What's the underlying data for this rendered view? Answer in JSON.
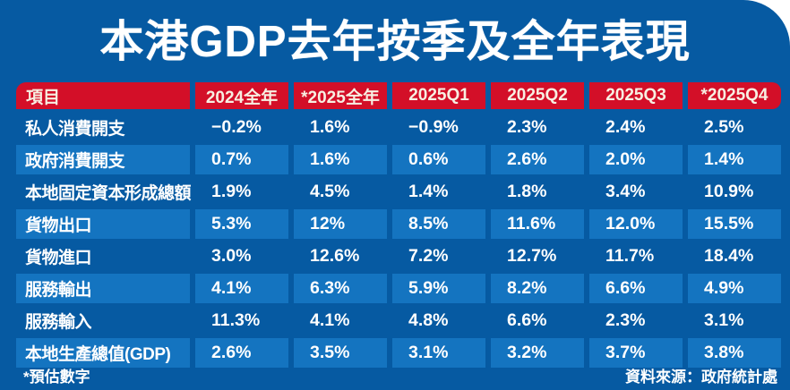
{
  "chart_data": {
    "type": "table",
    "title": "本港GDP去年按季及全年表現",
    "columns": [
      "項目",
      "2024全年",
      "*2025全年",
      "2025Q1",
      "2025Q2",
      "2025Q3",
      "*2025Q4"
    ],
    "rows": [
      {
        "label": "私人消費開支",
        "values": [
          "−0.2%",
          "1.6%",
          "−0.9%",
          "2.3%",
          "2.4%",
          "2.5%"
        ]
      },
      {
        "label": "政府消費開支",
        "values": [
          "0.7%",
          "1.6%",
          "0.6%",
          "2.6%",
          "2.0%",
          "1.4%"
        ]
      },
      {
        "label": "本地固定資本形成總額",
        "values": [
          "1.9%",
          "4.5%",
          "1.4%",
          "1.8%",
          "3.4%",
          "10.9%"
        ]
      },
      {
        "label": "貨物出口",
        "values": [
          "5.3%",
          "12%",
          "8.5%",
          "11.6%",
          "12.0%",
          "15.5%"
        ]
      },
      {
        "label": "貨物進口",
        "values": [
          "3.0%",
          "12.6%",
          "7.2%",
          "12.7%",
          "11.7%",
          "18.4%"
        ]
      },
      {
        "label": "服務輸出",
        "values": [
          "4.1%",
          "6.3%",
          "5.9%",
          "8.2%",
          "6.6%",
          "4.9%"
        ]
      },
      {
        "label": "服務輸入",
        "values": [
          "11.3%",
          "4.1%",
          "4.8%",
          "6.6%",
          "2.3%",
          "3.1%"
        ]
      },
      {
        "label": "本地生產總值(GDP)",
        "values": [
          "2.6%",
          "3.5%",
          "3.1%",
          "3.2%",
          "3.7%",
          "3.8%"
        ]
      }
    ],
    "legend_position": "none",
    "grid": false
  },
  "footer": {
    "note": "*預估數字",
    "source": "資料來源：政府統計處"
  },
  "colors": {
    "panel_blue": "#065aa2",
    "row_highlight_blue": "#1474c0",
    "header_red": "#d30f28",
    "header_text": "#f7efe2",
    "body_text": "#ffffff"
  }
}
